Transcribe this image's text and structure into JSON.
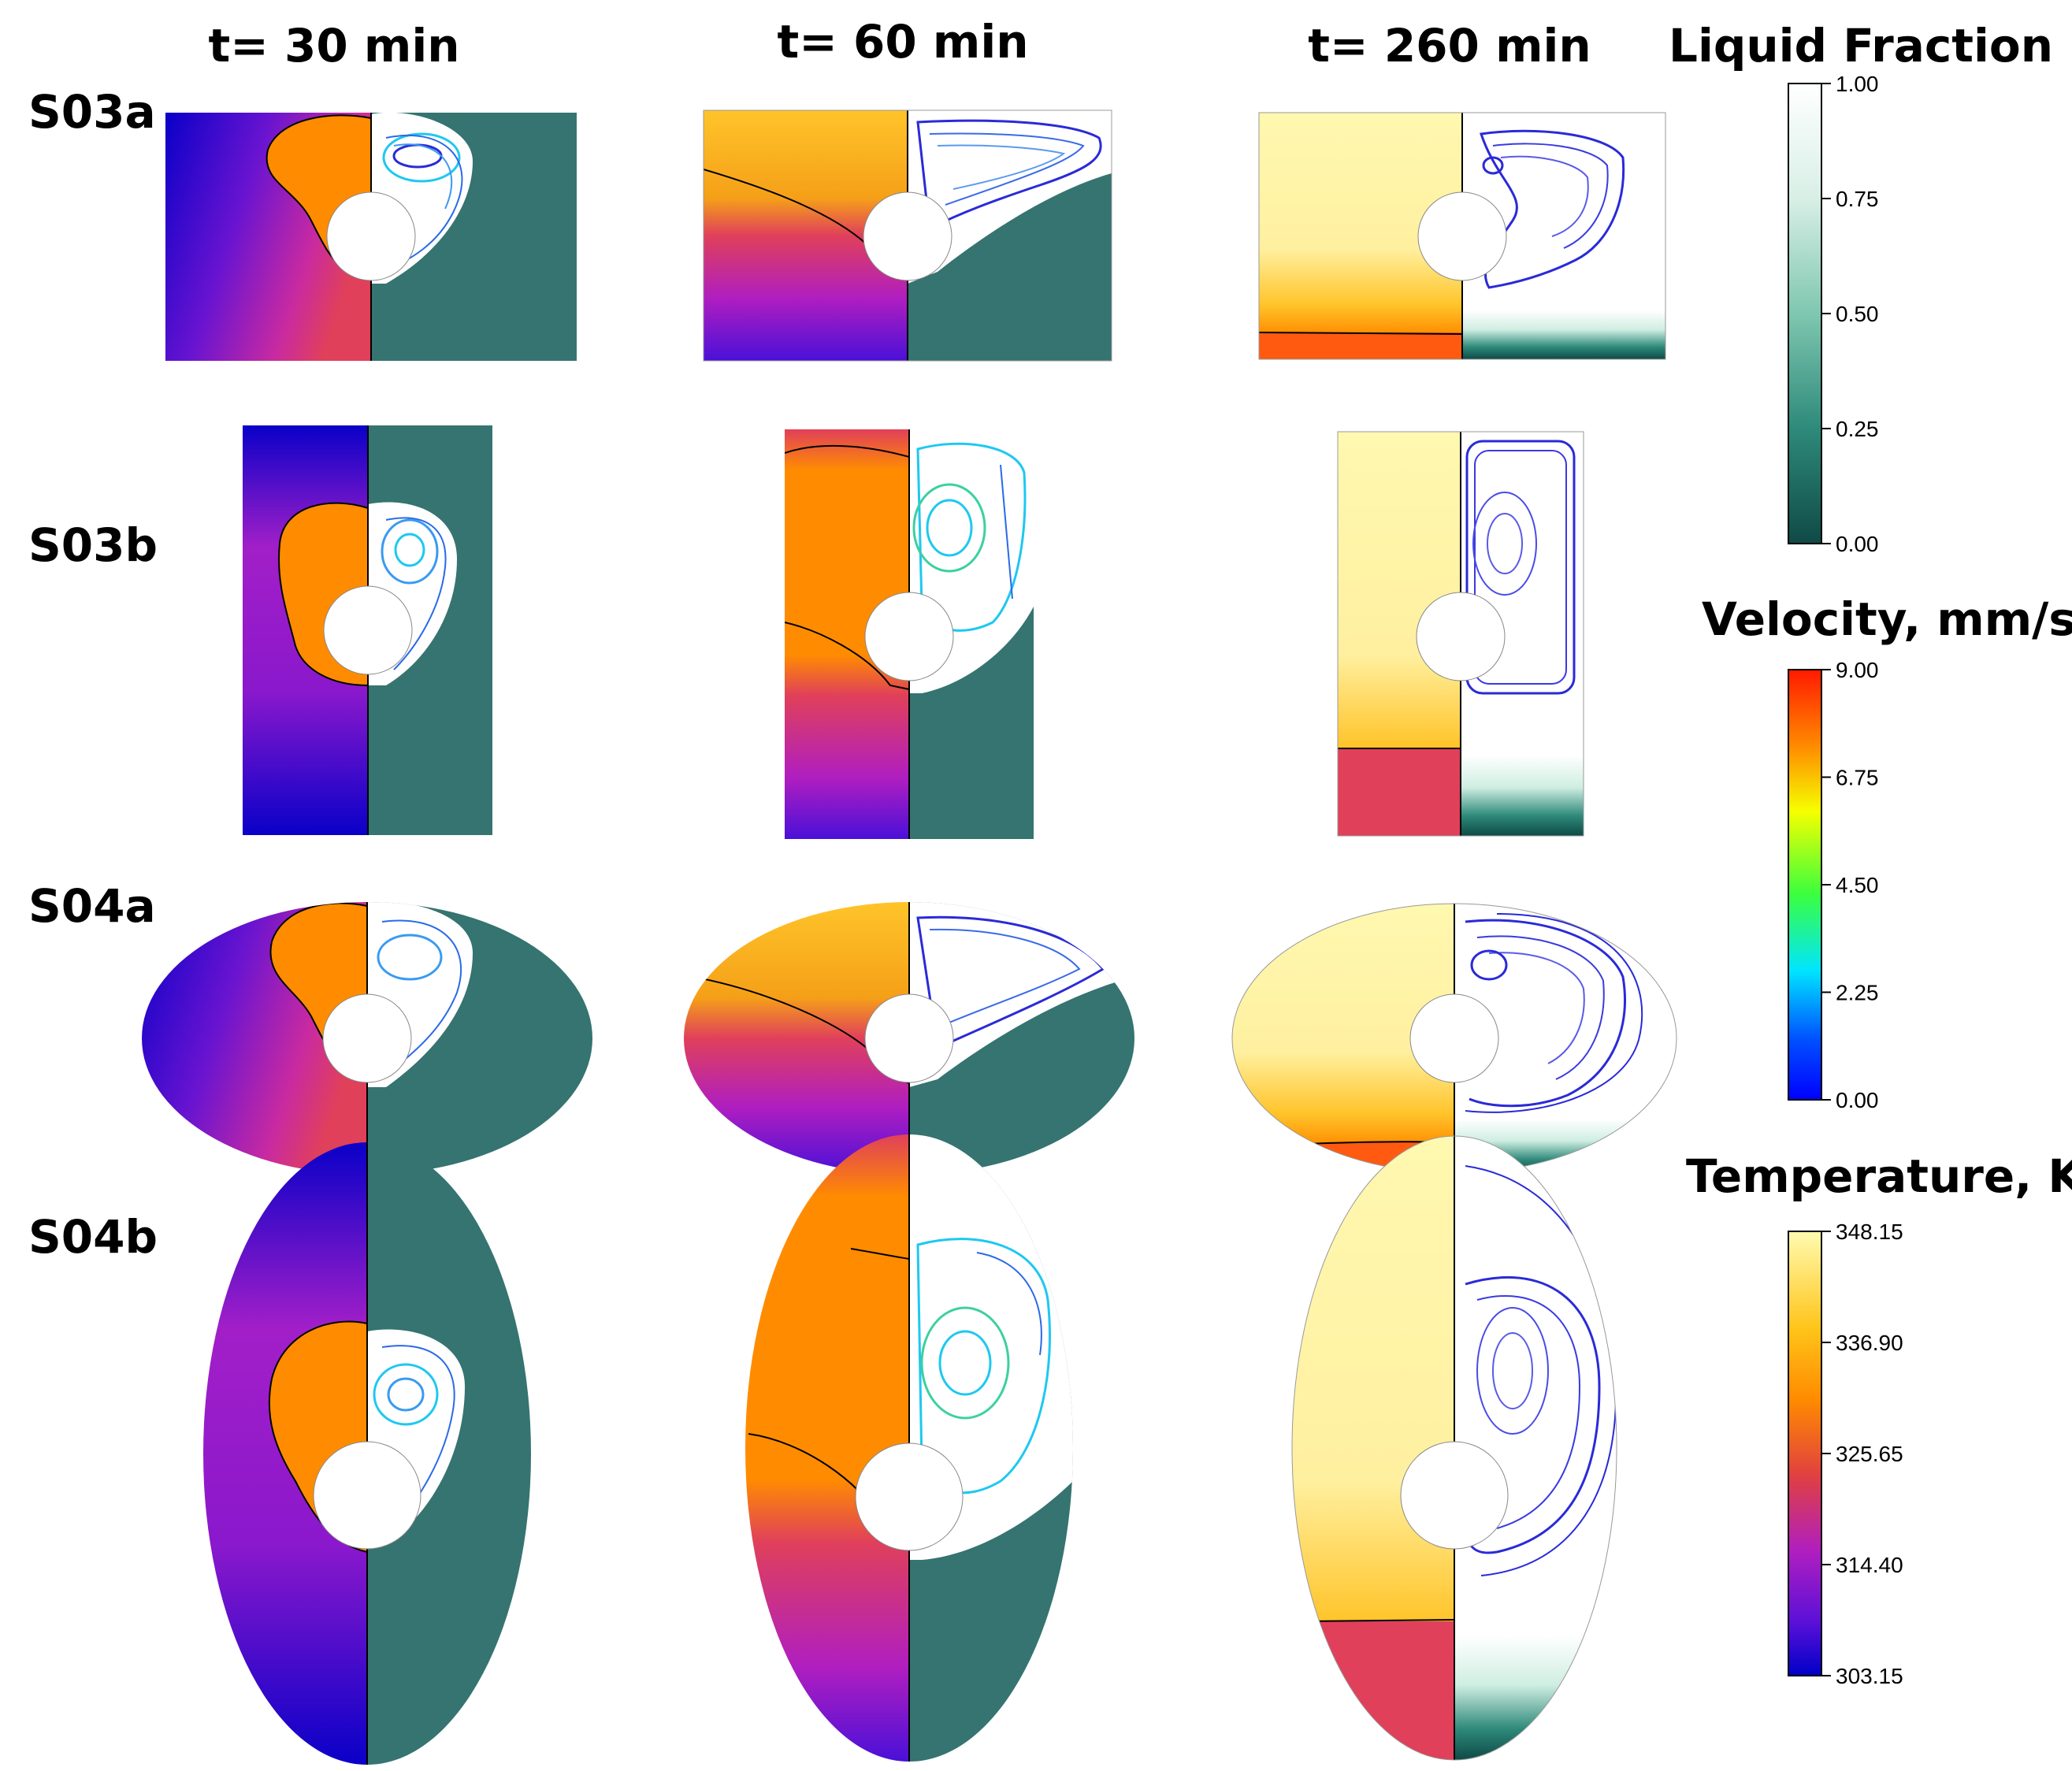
{
  "columns": [
    "t= 30 min",
    "t= 60 min",
    "t= 260 min"
  ],
  "rows": [
    "S03a",
    "S03b",
    "S04a",
    "S04b"
  ],
  "colorbars": [
    {
      "title": "Liquid Fraction",
      "ticks": [
        "1.00",
        "0.75",
        "0.50",
        "0.25",
        "0.00"
      ],
      "colors": [
        "#ffffff",
        "#d8efe6",
        "#7fc7b0",
        "#2e8a7a",
        "#0f4a46"
      ]
    },
    {
      "title": "Velocity, mm/s",
      "ticks": [
        "9.00",
        "6.75",
        "4.50",
        "2.25",
        "0.00"
      ],
      "colors": [
        "#ff1a00",
        "#ff8c00",
        "#f5ff00",
        "#3cff3c",
        "#00e5ff",
        "#0050ff",
        "#0000ff"
      ]
    },
    {
      "title": "Temperature, K",
      "ticks": [
        "348.15",
        "336.90",
        "325.65",
        "314.40",
        "303.15"
      ],
      "colors": [
        "#fffbb0",
        "#ffc419",
        "#ff8a00",
        "#e04040",
        "#b01ec0",
        "#5a10d8",
        "#0000c8"
      ]
    }
  ],
  "palette": {
    "cold": "#0a00c8",
    "purple": "#a21fc8",
    "red": "#e0405a",
    "orange": "#ff8c00",
    "gold": "#ffc42a",
    "pale": "#fff8b0",
    "solid": "#357470",
    "solid_dark": "#0e4a46",
    "stream_blue": "#2a2ad8",
    "stream_cyan": "#1ec8f0"
  }
}
